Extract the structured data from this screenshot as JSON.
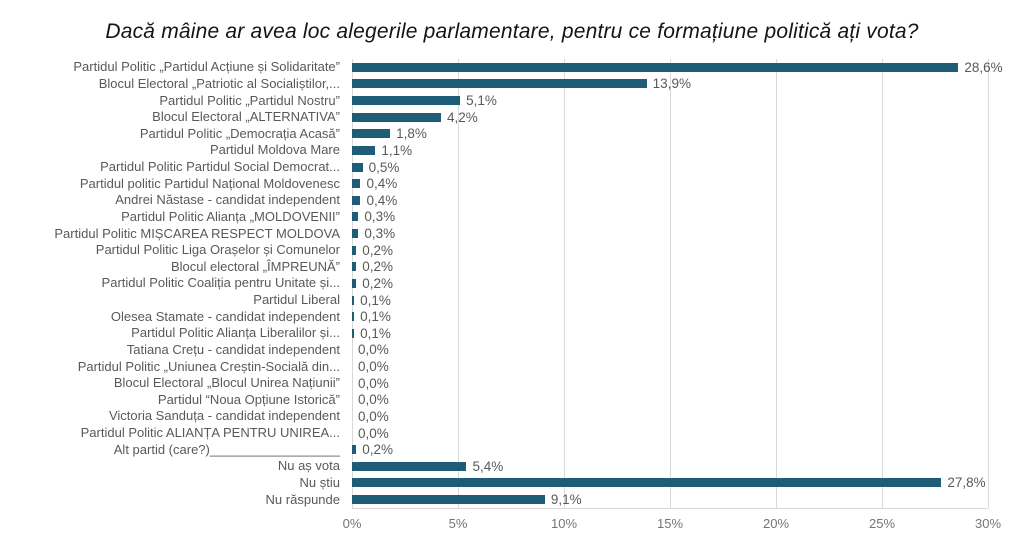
{
  "colors": {
    "bar": "#1F5C78",
    "gridline": "#D9D9D9",
    "label": "#595959",
    "tick": "#757575",
    "title": "#141414"
  },
  "chart_data": {
    "type": "bar",
    "orientation": "horizontal",
    "title": "Dacă mâine ar avea loc alegerile parlamentare, pentru ce formațiune politică ați vota?",
    "xlabel": "",
    "ylabel": "",
    "xlim": [
      0,
      30
    ],
    "x_ticks": [
      "0%",
      "5%",
      "10%",
      "15%",
      "20%",
      "25%",
      "30%"
    ],
    "grid": true,
    "legend": false,
    "categories": [
      "Partidul Politic „Partidul Acțiune și Solidaritate”",
      "Blocul Electoral „Patriotic al Socialiștilor,...",
      "Partidul Politic „Partidul Nostru”",
      "Blocul Electoral „ALTERNATIVA”",
      "Partidul Politic „Democrația Acasă”",
      "Partidul Moldova Mare",
      "Partidul Politic Partidul Social Democrat...",
      "Partidul politic Partidul Național Moldovenesc",
      "Andrei Năstase - candidat independent",
      "Partidul Politic Alianța „MOLDOVENII”",
      "Partidul Politic MIȘCAREA RESPECT MOLDOVA",
      "Partidul Politic Liga Orașelor și Comunelor",
      "Blocul electoral „ÎMPREUNĂ”",
      "Partidul Politic Coaliția pentru Unitate și...",
      "Partidul Liberal",
      "Olesea Stamate - candidat independent",
      "Partidul Politic Alianța Liberalilor și...",
      "Tatiana Crețu - candidat independent",
      "Partidul Politic „Uniunea Creștin-Socială din...",
      "Blocul Electoral „Blocul Unirea Națiunii”",
      "Partidul “Noua Opțiune Istorică”",
      "Victoria Sanduța - candidat independent",
      "Partidul Politic ALIANȚA PENTRU UNIREA...",
      "Alt partid (care?)__________________",
      "Nu aș vota",
      "Nu știu",
      "Nu răspunde"
    ],
    "values": [
      28.6,
      13.9,
      5.1,
      4.2,
      1.8,
      1.1,
      0.5,
      0.4,
      0.4,
      0.3,
      0.3,
      0.2,
      0.2,
      0.2,
      0.1,
      0.1,
      0.1,
      0.0,
      0.0,
      0.0,
      0.0,
      0.0,
      0.0,
      0.2,
      5.4,
      27.8,
      9.1
    ],
    "value_labels": [
      "28,6%",
      "13,9%",
      "5,1%",
      "4,2%",
      "1,8%",
      "1,1%",
      "0,5%",
      "0,4%",
      "0,4%",
      "0,3%",
      "0,3%",
      "0,2%",
      "0,2%",
      "0,2%",
      "0,1%",
      "0,1%",
      "0,1%",
      "0,0%",
      "0,0%",
      "0,0%",
      "0,0%",
      "0,0%",
      "0,0%",
      "0,2%",
      "5,4%",
      "27,8%",
      "9,1%"
    ]
  }
}
